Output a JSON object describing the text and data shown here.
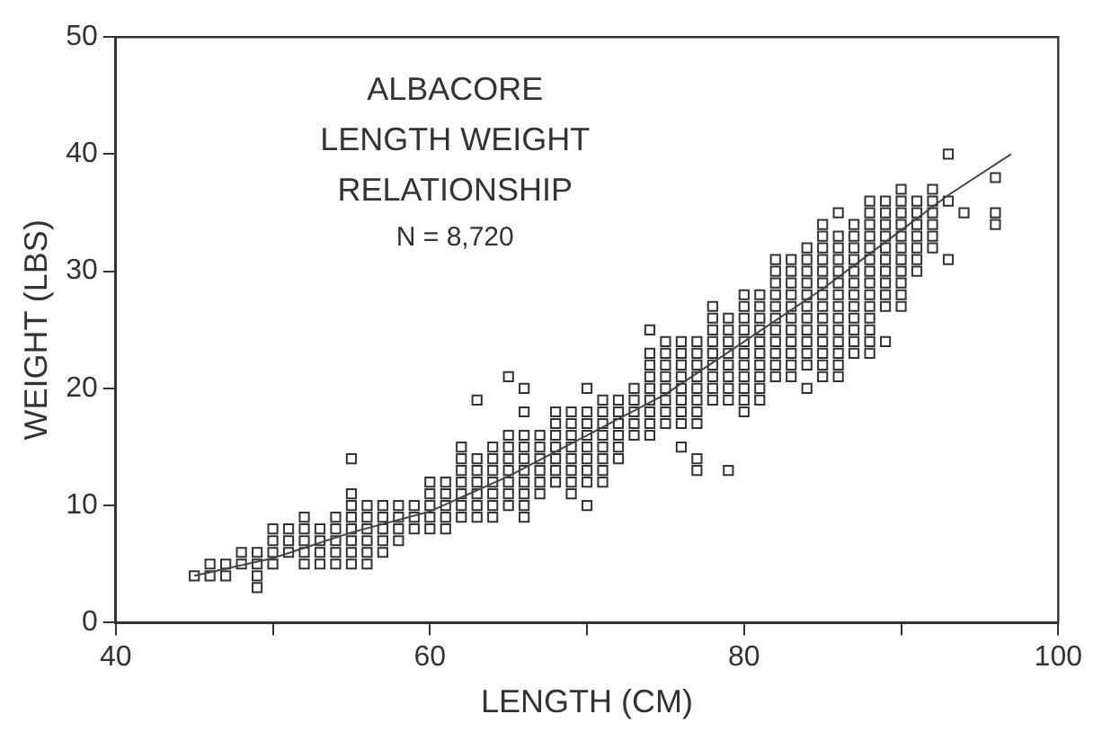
{
  "chart_data": {
    "type": "scatter",
    "title": "ALBACORE LENGTH WEIGHT RELATIONSHIP",
    "subtitle": "N = 8,720",
    "xlabel": "LENGTH (CM)",
    "ylabel": "WEIGHT (LBS)",
    "xlim": [
      40,
      100
    ],
    "xticks": [
      40,
      {
        "value": 50,
        "label": null
      },
      60,
      {
        "value": 70,
        "label": null
      },
      80,
      {
        "value": 90,
        "label": null
      },
      100
    ],
    "ylim": [
      0,
      50
    ],
    "yticks": [
      0,
      10,
      20,
      30,
      40,
      50
    ],
    "grid": false,
    "legend": false,
    "marker": "square",
    "series": [
      {
        "type": "scatter",
        "color": "#333333",
        "x": [
          45,
          46,
          46,
          47,
          47,
          48,
          48,
          49,
          49,
          49,
          49,
          50,
          50,
          50,
          50,
          51,
          51,
          51,
          52,
          52,
          52,
          52,
          52,
          53,
          53,
          53,
          53,
          54,
          54,
          54,
          54,
          54,
          55,
          55,
          55,
          55,
          55,
          55,
          55,
          55,
          56,
          56,
          56,
          56,
          56,
          56,
          57,
          57,
          57,
          57,
          57,
          58,
          58,
          58,
          58,
          59,
          59,
          59,
          60,
          60,
          60,
          60,
          60,
          61,
          61,
          61,
          61,
          61,
          62,
          62,
          62,
          62,
          62,
          62,
          62,
          63,
          63,
          63,
          63,
          63,
          63,
          63,
          64,
          64,
          64,
          64,
          64,
          64,
          64,
          65,
          65,
          65,
          65,
          65,
          65,
          65,
          65,
          66,
          66,
          66,
          66,
          66,
          66,
          66,
          66,
          66,
          66,
          67,
          67,
          67,
          67,
          67,
          67,
          68,
          68,
          68,
          68,
          68,
          68,
          68,
          69,
          69,
          69,
          69,
          69,
          69,
          69,
          69,
          70,
          70,
          70,
          70,
          70,
          70,
          70,
          70,
          70,
          71,
          71,
          71,
          71,
          71,
          71,
          71,
          71,
          72,
          72,
          72,
          72,
          72,
          72,
          73,
          73,
          73,
          73,
          73,
          74,
          74,
          74,
          74,
          74,
          74,
          74,
          74,
          74,
          75,
          75,
          75,
          75,
          75,
          75,
          75,
          75,
          76,
          76,
          76,
          76,
          76,
          76,
          76,
          76,
          76,
          77,
          77,
          77,
          77,
          77,
          77,
          77,
          77,
          77,
          77,
          78,
          78,
          78,
          78,
          78,
          78,
          78,
          78,
          78,
          79,
          79,
          79,
          79,
          79,
          79,
          79,
          79,
          79,
          80,
          80,
          80,
          80,
          80,
          80,
          80,
          80,
          80,
          80,
          80,
          81,
          81,
          81,
          81,
          81,
          81,
          81,
          81,
          81,
          81,
          82,
          82,
          82,
          82,
          82,
          82,
          82,
          82,
          82,
          82,
          82,
          83,
          83,
          83,
          83,
          83,
          83,
          83,
          83,
          83,
          83,
          83,
          84,
          84,
          84,
          84,
          84,
          84,
          84,
          84,
          84,
          84,
          84,
          84,
          85,
          85,
          85,
          85,
          85,
          85,
          85,
          85,
          85,
          85,
          85,
          85,
          85,
          85,
          86,
          86,
          86,
          86,
          86,
          86,
          86,
          86,
          86,
          86,
          86,
          86,
          86,
          86,
          87,
          87,
          87,
          87,
          87,
          87,
          87,
          87,
          87,
          87,
          87,
          87,
          88,
          88,
          88,
          88,
          88,
          88,
          88,
          88,
          88,
          88,
          88,
          88,
          88,
          88,
          89,
          89,
          89,
          89,
          89,
          89,
          89,
          89,
          89,
          89,
          89,
          90,
          90,
          90,
          90,
          90,
          90,
          90,
          90,
          90,
          90,
          90,
          91,
          91,
          91,
          91,
          91,
          91,
          91,
          92,
          92,
          92,
          92,
          92,
          92,
          93,
          93,
          93,
          94,
          96,
          96,
          96
        ],
        "values": [
          4,
          5,
          4,
          5,
          4,
          6,
          5,
          6,
          5,
          4,
          3,
          8,
          7,
          6,
          5,
          8,
          7,
          6,
          9,
          8,
          7,
          6,
          5,
          8,
          7,
          6,
          5,
          9,
          8,
          7,
          6,
          5,
          14,
          11,
          10,
          9,
          8,
          7,
          6,
          5,
          10,
          9,
          8,
          7,
          6,
          5,
          10,
          9,
          8,
          7,
          6,
          10,
          9,
          8,
          7,
          10,
          9,
          8,
          12,
          11,
          10,
          9,
          8,
          12,
          11,
          10,
          9,
          8,
          15,
          14,
          13,
          12,
          11,
          10,
          9,
          19,
          14,
          13,
          12,
          11,
          10,
          9,
          15,
          14,
          13,
          12,
          11,
          10,
          9,
          21,
          16,
          15,
          14,
          13,
          12,
          11,
          10,
          20,
          18,
          16,
          15,
          14,
          13,
          12,
          11,
          10,
          9,
          16,
          15,
          14,
          13,
          12,
          11,
          18,
          17,
          16,
          15,
          14,
          13,
          12,
          18,
          17,
          16,
          15,
          14,
          13,
          12,
          11,
          20,
          18,
          17,
          16,
          15,
          14,
          13,
          12,
          10,
          19,
          18,
          17,
          16,
          15,
          14,
          13,
          12,
          19,
          18,
          17,
          16,
          15,
          14,
          20,
          19,
          18,
          17,
          16,
          25,
          23,
          22,
          21,
          20,
          19,
          18,
          17,
          16,
          24,
          23,
          22,
          21,
          20,
          19,
          18,
          17,
          24,
          23,
          22,
          21,
          20,
          19,
          18,
          17,
          15,
          24,
          23,
          22,
          21,
          20,
          19,
          18,
          17,
          14,
          13,
          27,
          26,
          25,
          24,
          23,
          22,
          21,
          20,
          19,
          26,
          25,
          24,
          23,
          22,
          21,
          20,
          19,
          13,
          28,
          27,
          26,
          25,
          24,
          23,
          22,
          21,
          20,
          19,
          18,
          28,
          27,
          26,
          25,
          24,
          23,
          22,
          21,
          20,
          19,
          31,
          30,
          29,
          28,
          27,
          26,
          25,
          24,
          23,
          22,
          21,
          31,
          30,
          29,
          28,
          27,
          26,
          25,
          24,
          23,
          22,
          21,
          32,
          31,
          30,
          29,
          28,
          27,
          26,
          25,
          24,
          23,
          22,
          20,
          34,
          33,
          32,
          31,
          30,
          29,
          28,
          27,
          26,
          25,
          24,
          23,
          22,
          21,
          35,
          33,
          32,
          31,
          30,
          29,
          28,
          27,
          26,
          25,
          24,
          23,
          22,
          21,
          34,
          33,
          32,
          31,
          30,
          29,
          28,
          27,
          26,
          25,
          24,
          23,
          36,
          35,
          34,
          33,
          32,
          31,
          30,
          29,
          28,
          27,
          26,
          25,
          24,
          23,
          36,
          35,
          34,
          33,
          32,
          31,
          30,
          29,
          28,
          27,
          24,
          37,
          36,
          35,
          34,
          33,
          32,
          31,
          30,
          29,
          28,
          27,
          36,
          35,
          34,
          33,
          32,
          31,
          30,
          37,
          36,
          35,
          34,
          33,
          32,
          40,
          36,
          31,
          35,
          38,
          35,
          34
        ]
      },
      {
        "type": "line",
        "color": "#444444",
        "line_style": "solid",
        "marker": "none",
        "x": [
          45,
          50,
          55,
          60,
          65,
          70,
          75,
          80,
          85,
          90,
          93,
          97
        ],
        "values": [
          4,
          5.5,
          7.7,
          9.5,
          12.5,
          16,
          19.5,
          24,
          28.5,
          33.5,
          36.5,
          40
        ]
      }
    ]
  }
}
